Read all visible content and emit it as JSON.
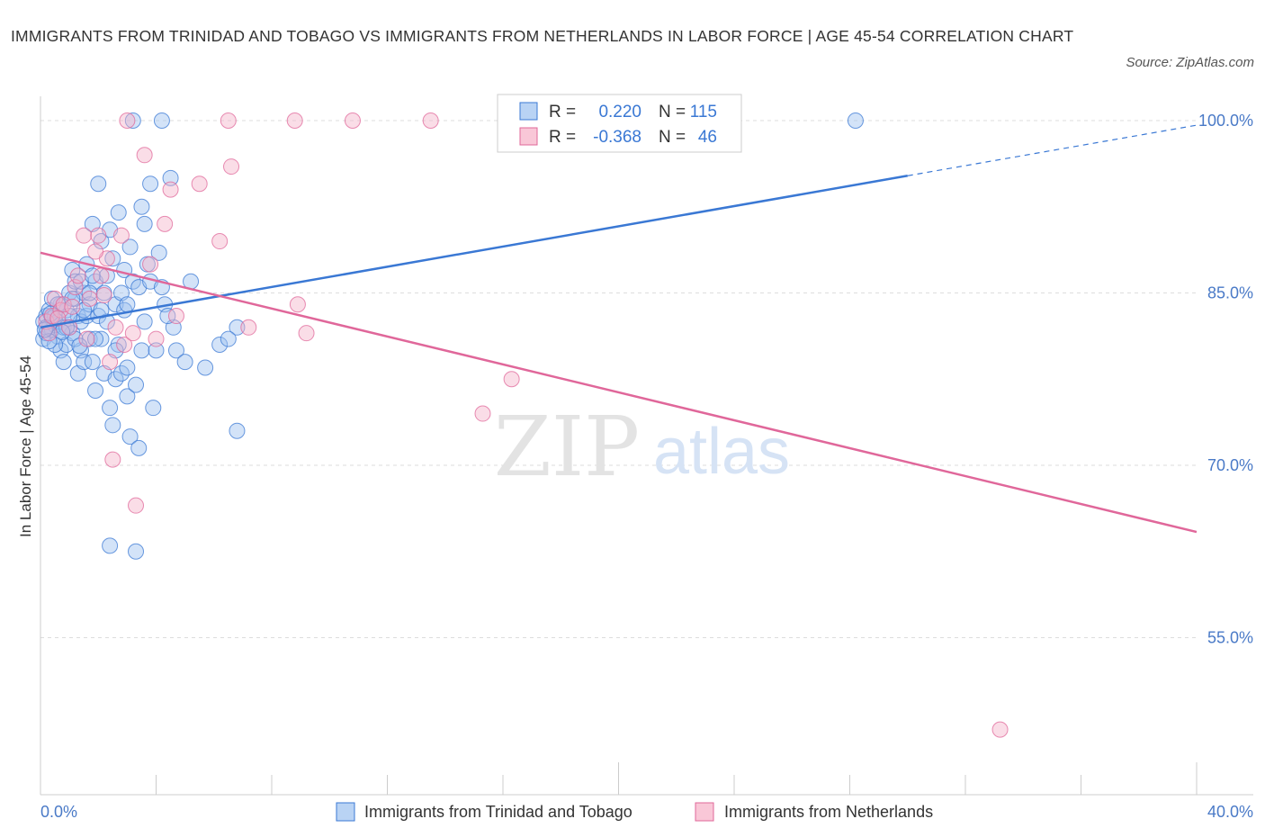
{
  "title": "IMMIGRANTS FROM TRINIDAD AND TOBAGO VS IMMIGRANTS FROM NETHERLANDS IN LABOR FORCE | AGE 45-54 CORRELATION CHART",
  "source": "Source: ZipAtlas.com",
  "watermark": {
    "zip": "ZIP",
    "atlas": "atlas"
  },
  "colors": {
    "blue": "#3a78d4",
    "blue_fill": "#9ec2ef",
    "pink": "#e0679a",
    "pink_fill": "#f5b3ca",
    "axis_label": "#4a7ac7",
    "grid": "#dddddd"
  },
  "legend_box": [
    {
      "r_label": "R =",
      "r_value": "0.220",
      "n_label": "N =",
      "n_value": "115"
    },
    {
      "r_label": "R =",
      "r_value": "-0.368",
      "n_label": "N =",
      "n_value": "46"
    }
  ],
  "chart_data": {
    "type": "scatter",
    "xlabel": "",
    "ylabel": "In Labor Force | Age 45-54",
    "xlim": [
      0,
      40
    ],
    "ylim": [
      40,
      102
    ],
    "x_tick_labels": [
      {
        "value": 0,
        "label": "0.0%"
      },
      {
        "value": 40,
        "label": "40.0%"
      }
    ],
    "y_tick_labels": [
      {
        "value": 100,
        "label": "100.0%"
      },
      {
        "value": 85,
        "label": "85.0%"
      },
      {
        "value": 70,
        "label": "70.0%"
      },
      {
        "value": 55,
        "label": "55.0%"
      }
    ],
    "grid": true,
    "legend_position": "bottom",
    "series": [
      {
        "name": "Immigrants from Trinidad and Tobago",
        "color": "#3a78d4",
        "trend": {
          "x": [
            0,
            30,
            40
          ],
          "y": [
            82.0,
            95.2,
            99.6
          ],
          "dashed_from": 30
        },
        "points": [
          [
            0.1,
            82.5
          ],
          [
            0.1,
            81.0
          ],
          [
            0.2,
            83.0
          ],
          [
            0.2,
            81.5
          ],
          [
            0.3,
            82.0
          ],
          [
            0.3,
            83.5
          ],
          [
            0.4,
            82.8
          ],
          [
            0.4,
            81.8
          ],
          [
            0.5,
            82.2
          ],
          [
            0.5,
            83.0
          ],
          [
            0.6,
            82.5
          ],
          [
            0.6,
            81.2
          ],
          [
            0.7,
            84.0
          ],
          [
            0.7,
            80.0
          ],
          [
            0.8,
            82.0
          ],
          [
            0.8,
            79.0
          ],
          [
            0.9,
            83.5
          ],
          [
            0.9,
            80.5
          ],
          [
            1.0,
            85.0
          ],
          [
            1.0,
            82.0
          ],
          [
            1.1,
            87.0
          ],
          [
            1.1,
            81.5
          ],
          [
            1.2,
            84.5
          ],
          [
            1.2,
            86.0
          ],
          [
            1.3,
            83.0
          ],
          [
            1.3,
            78.0
          ],
          [
            1.4,
            82.5
          ],
          [
            1.4,
            80.0
          ],
          [
            1.5,
            85.0
          ],
          [
            1.5,
            79.0
          ],
          [
            1.6,
            87.5
          ],
          [
            1.6,
            83.0
          ],
          [
            1.7,
            81.0
          ],
          [
            1.7,
            84.0
          ],
          [
            1.8,
            91.0
          ],
          [
            1.8,
            79.0
          ],
          [
            1.9,
            86.0
          ],
          [
            1.9,
            76.5
          ],
          [
            2.0,
            83.0
          ],
          [
            2.0,
            94.5
          ],
          [
            2.1,
            89.5
          ],
          [
            2.1,
            81.0
          ],
          [
            2.2,
            85.0
          ],
          [
            2.2,
            78.0
          ],
          [
            2.3,
            86.5
          ],
          [
            2.3,
            82.5
          ],
          [
            2.4,
            90.5
          ],
          [
            2.4,
            75.0
          ],
          [
            2.5,
            88.0
          ],
          [
            2.5,
            73.5
          ],
          [
            2.6,
            77.5
          ],
          [
            2.6,
            84.0
          ],
          [
            2.7,
            92.0
          ],
          [
            2.7,
            80.5
          ],
          [
            2.8,
            85.0
          ],
          [
            2.8,
            78.0
          ],
          [
            2.9,
            83.5
          ],
          [
            2.9,
            87.0
          ],
          [
            3.0,
            84.0
          ],
          [
            3.0,
            76.0
          ],
          [
            3.1,
            89.0
          ],
          [
            3.1,
            72.5
          ],
          [
            3.2,
            86.0
          ],
          [
            3.2,
            100.0
          ],
          [
            3.3,
            77.0
          ],
          [
            3.3,
            62.5
          ],
          [
            3.4,
            85.5
          ],
          [
            3.4,
            71.5
          ],
          [
            3.5,
            92.5
          ],
          [
            3.5,
            80.0
          ],
          [
            3.6,
            91.0
          ],
          [
            3.6,
            82.5
          ],
          [
            3.8,
            94.5
          ],
          [
            3.8,
            86.0
          ],
          [
            3.9,
            75.0
          ],
          [
            4.0,
            80.0
          ],
          [
            4.1,
            88.5
          ],
          [
            4.2,
            85.5
          ],
          [
            4.3,
            84.0
          ],
          [
            4.2,
            100.0
          ],
          [
            4.5,
            95.0
          ],
          [
            4.6,
            82.0
          ],
          [
            4.7,
            80.0
          ],
          [
            5.2,
            86.0
          ],
          [
            5.7,
            78.5
          ],
          [
            6.2,
            80.5
          ],
          [
            6.8,
            82.0
          ],
          [
            6.8,
            73.0
          ],
          [
            2.4,
            63.0
          ],
          [
            1.9,
            81.0
          ],
          [
            0.4,
            84.5
          ],
          [
            0.5,
            80.5
          ],
          [
            1.0,
            83.0
          ],
          [
            1.2,
            81.0
          ],
          [
            1.4,
            86.0
          ],
          [
            1.7,
            85.0
          ],
          [
            2.1,
            83.5
          ],
          [
            0.2,
            82.0
          ],
          [
            0.3,
            80.8
          ],
          [
            0.6,
            84.0
          ],
          [
            0.9,
            82.0
          ],
          [
            1.1,
            84.5
          ],
          [
            1.5,
            83.5
          ],
          [
            1.8,
            86.5
          ],
          [
            2.6,
            80.0
          ],
          [
            3.0,
            78.5
          ],
          [
            3.7,
            87.5
          ],
          [
            4.4,
            83.0
          ],
          [
            5.0,
            79.0
          ],
          [
            6.5,
            81.0
          ],
          [
            28.2,
            100.0
          ],
          [
            0.15,
            81.8
          ],
          [
            0.35,
            83.2
          ],
          [
            0.75,
            81.6
          ],
          [
            1.35,
            80.4
          ]
        ]
      },
      {
        "name": "Immigrants from Netherlands",
        "color": "#e0679a",
        "trend": {
          "x": [
            0,
            40
          ],
          "y": [
            88.5,
            64.2
          ]
        },
        "points": [
          [
            0.2,
            82.5
          ],
          [
            0.3,
            81.5
          ],
          [
            0.4,
            83.0
          ],
          [
            0.5,
            84.5
          ],
          [
            0.7,
            83.5
          ],
          [
            0.8,
            84.0
          ],
          [
            1.0,
            82.0
          ],
          [
            1.2,
            85.5
          ],
          [
            1.3,
            86.5
          ],
          [
            1.5,
            90.0
          ],
          [
            1.6,
            81.0
          ],
          [
            1.7,
            84.5
          ],
          [
            2.0,
            90.0
          ],
          [
            2.1,
            86.5
          ],
          [
            2.3,
            88.0
          ],
          [
            2.4,
            79.0
          ],
          [
            2.5,
            70.5
          ],
          [
            2.6,
            82.0
          ],
          [
            2.8,
            90.0
          ],
          [
            2.9,
            80.5
          ],
          [
            3.0,
            100.0
          ],
          [
            3.2,
            81.5
          ],
          [
            3.3,
            66.5
          ],
          [
            3.6,
            97.0
          ],
          [
            3.8,
            87.5
          ],
          [
            4.0,
            81.0
          ],
          [
            4.3,
            91.0
          ],
          [
            4.5,
            94.0
          ],
          [
            4.7,
            83.0
          ],
          [
            5.5,
            94.5
          ],
          [
            6.2,
            89.5
          ],
          [
            6.5,
            100.0
          ],
          [
            6.6,
            96.0
          ],
          [
            7.2,
            82.0
          ],
          [
            8.8,
            100.0
          ],
          [
            8.9,
            84.0
          ],
          [
            9.2,
            81.5
          ],
          [
            10.8,
            100.0
          ],
          [
            13.5,
            100.0
          ],
          [
            15.3,
            74.5
          ],
          [
            16.3,
            77.5
          ],
          [
            33.2,
            47.0
          ],
          [
            1.1,
            83.8
          ],
          [
            0.6,
            82.8
          ],
          [
            1.9,
            88.6
          ],
          [
            2.2,
            84.8
          ]
        ]
      }
    ]
  }
}
